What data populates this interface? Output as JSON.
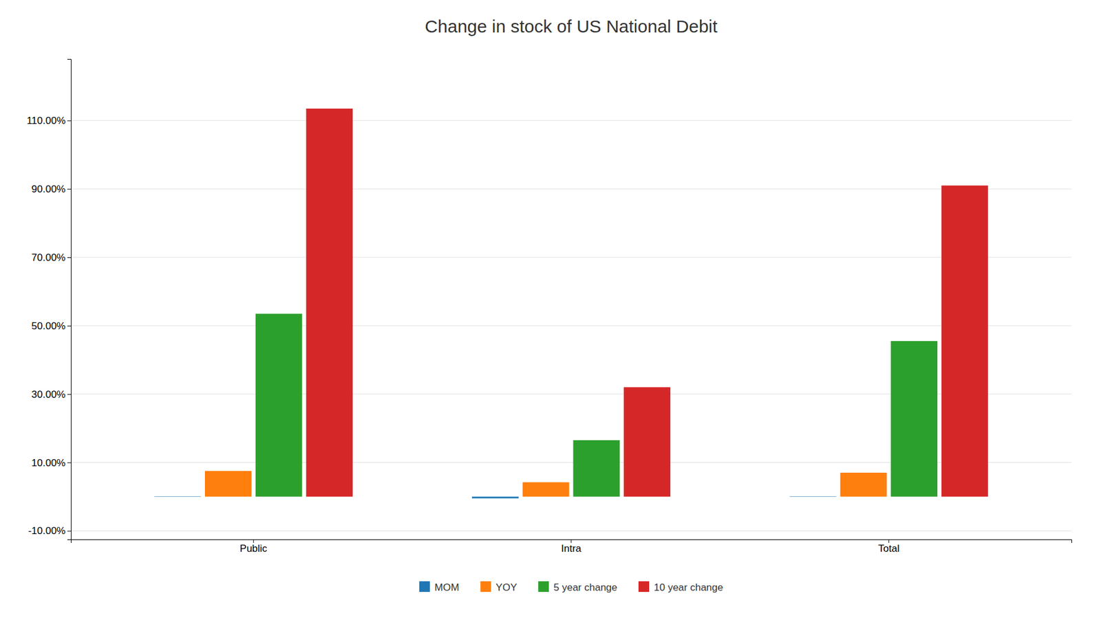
{
  "chart_data": {
    "type": "bar",
    "title": "Change in stock of US National Debit",
    "categories": [
      "Public",
      "Intra",
      "Total"
    ],
    "series": [
      {
        "name": "MOM",
        "values": [
          0.001,
          -0.005,
          0.001
        ]
      },
      {
        "name": "YOY",
        "values": [
          0.075,
          0.042,
          0.07
        ]
      },
      {
        "name": "5 year change",
        "values": [
          0.535,
          0.165,
          0.455
        ]
      },
      {
        "name": "10 year change",
        "values": [
          1.135,
          0.32,
          0.91
        ]
      }
    ],
    "ylim": [
      -0.125,
      1.28
    ],
    "yticks": [
      {
        "value": -0.1,
        "label": "-10.00%"
      },
      {
        "value": 0.1,
        "label": "10.00%"
      },
      {
        "value": 0.3,
        "label": "30.00%"
      },
      {
        "value": 0.5,
        "label": "50.00%"
      },
      {
        "value": 0.7,
        "label": "70.00%"
      },
      {
        "value": 0.9,
        "label": "90.00%"
      },
      {
        "value": 1.1,
        "label": "110.00%"
      }
    ],
    "grid": true,
    "legend": "bottom"
  }
}
